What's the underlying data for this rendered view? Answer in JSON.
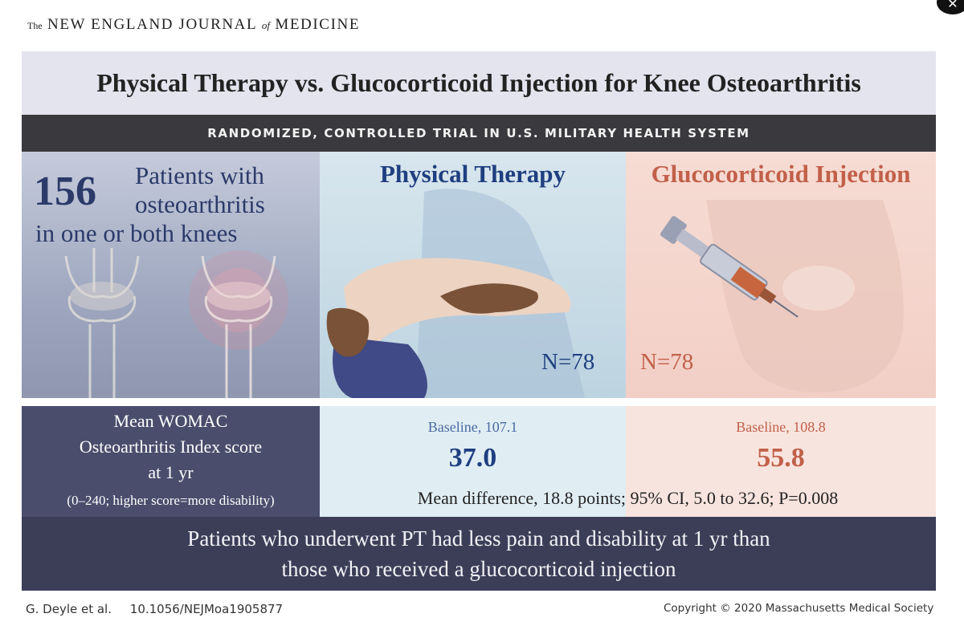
{
  "journal": {
    "the": "The",
    "name_part1": "NEW ENGLAND JOURNAL",
    "of": "of",
    "name_part2": "MEDICINE"
  },
  "title": "Physical Therapy vs. Glucocorticoid Injection for Knee Osteoarthritis",
  "subtitle": "RANDOMIZED, CONTROLLED TRIAL IN U.S. MILITARY HEALTH SYSTEM",
  "population": {
    "count": "156",
    "line1": "Patients with",
    "line2": "osteoarthritis",
    "line3": "in one or both knees"
  },
  "arms": {
    "pt": {
      "title": "Physical Therapy",
      "n": "N=78",
      "baseline": "Baseline, 107.1",
      "score": "37.0",
      "color": "#1f3f80"
    },
    "gc": {
      "title": "Glucocorticoid Injection",
      "n": "N=78",
      "baseline": "Baseline, 108.8",
      "score": "55.8",
      "color": "#c2604a"
    }
  },
  "outcome": {
    "line1": "Mean WOMAC",
    "line2": "Osteoarthritis Index score",
    "line3": "at 1 yr",
    "range": "(0–240; higher score=more disability)"
  },
  "mean_difference": "Mean difference, 18.8 points; 95% CI, 5.0 to 32.6; P=0.008",
  "conclusion": {
    "line1": "Patients who underwent PT had less pain and disability at 1 yr than",
    "line2": "those who received a glucocorticoid injection"
  },
  "footer": {
    "authors": "G. Deyle et al.",
    "doi": "10.1056/NEJMoa1905877",
    "copyright": "Copyright © 2020 Massachusetts Medical Society"
  },
  "icons": {
    "close": "close-icon",
    "knees": "knee-joints-illustration",
    "pt": "physical-therapy-illustration",
    "gc": "syringe-injection-illustration"
  }
}
